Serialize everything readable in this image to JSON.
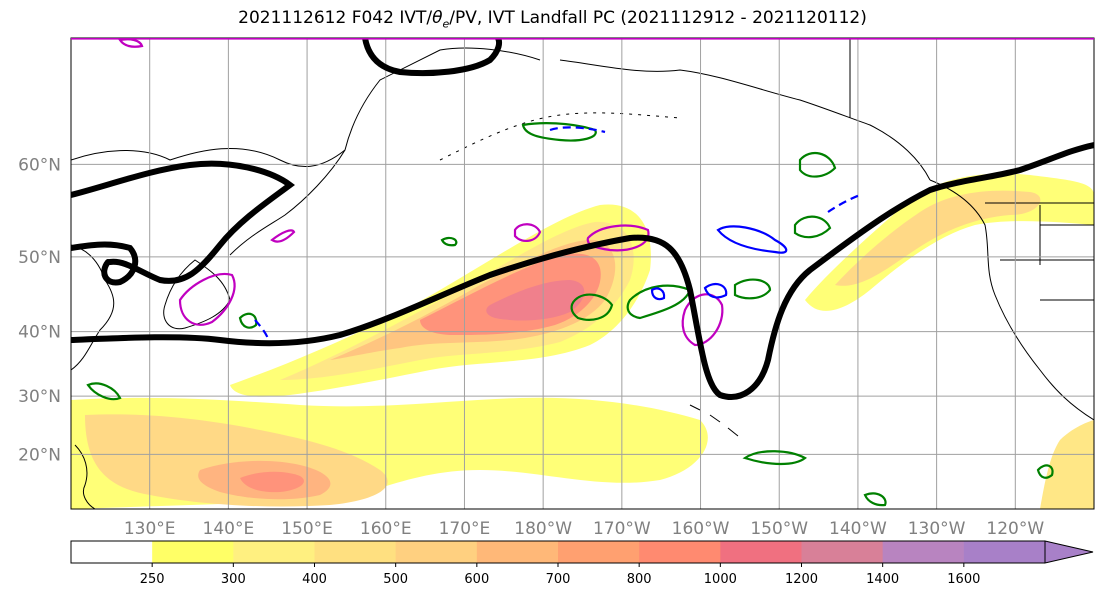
{
  "title": {
    "prefix": "2021112612 F042 IVT/",
    "theta": "θ",
    "theta_sub": "e",
    "suffix": "/PV, IVT Landfall PC (2021112912 - 2021120112)"
  },
  "map": {
    "lat_labels": [
      {
        "lat": 60,
        "text": "60°N"
      },
      {
        "lat": 50,
        "text": "50°N"
      },
      {
        "lat": 40,
        "text": "40°N"
      },
      {
        "lat": 30,
        "text": "30°N"
      },
      {
        "lat": 20,
        "text": "20°N"
      }
    ],
    "lon_labels": [
      {
        "lon": 130,
        "text": "130°E"
      },
      {
        "lon": 140,
        "text": "140°E"
      },
      {
        "lon": 150,
        "text": "150°E"
      },
      {
        "lon": 160,
        "text": "160°E"
      },
      {
        "lon": 170,
        "text": "170°E"
      },
      {
        "lon": 180,
        "text": "180°W"
      },
      {
        "lon": 190,
        "text": "170°W"
      },
      {
        "lon": 200,
        "text": "160°W"
      },
      {
        "lon": 210,
        "text": "150°W"
      },
      {
        "lon": 220,
        "text": "140°W"
      },
      {
        "lon": 230,
        "text": "130°W"
      },
      {
        "lon": 240,
        "text": "120°W"
      }
    ],
    "lon_range": [
      120,
      250
    ],
    "lat_range": [
      10,
      70
    ],
    "grid": true,
    "colors": {
      "grid": "#a0a0a0",
      "coast": "#000000",
      "pv_contour": "#000000",
      "theta_e": "#008000",
      "ivt_neg": "#0000ff",
      "pc_magenta": "#c000c0"
    }
  },
  "colorbar": {
    "levels": [
      250,
      300,
      400,
      500,
      600,
      700,
      800,
      1000,
      1200,
      1400,
      1600
    ],
    "tick_labels": [
      "250",
      "300",
      "400",
      "500",
      "600",
      "700",
      "800",
      "1000",
      "1200",
      "1400",
      "1600"
    ],
    "colors": [
      "#ffffff",
      "#ffff66",
      "#fff080",
      "#ffe080",
      "#ffd080",
      "#ffb878",
      "#ffa070",
      "#ff8a70",
      "#f07080",
      "#d88098",
      "#b884c0",
      "#a880c8"
    ],
    "extend": "max"
  }
}
